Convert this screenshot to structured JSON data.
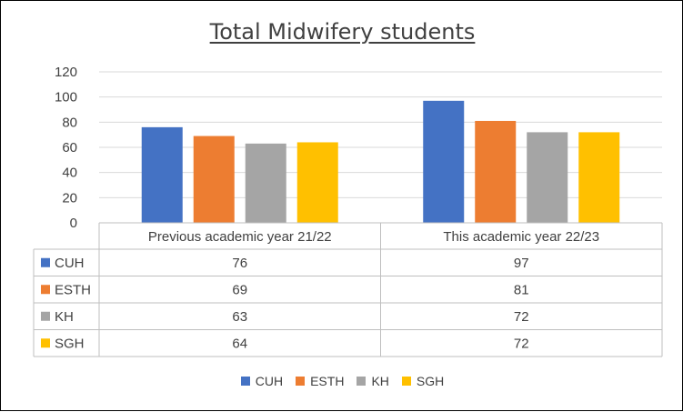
{
  "chart_data": {
    "type": "bar",
    "title": "Total Midwifery students",
    "categories": [
      "Previous academic year 21/22",
      "This academic year 22/23"
    ],
    "series": [
      {
        "name": "CUH",
        "color": "#4472C4",
        "values": [
          76,
          97
        ]
      },
      {
        "name": "ESTH",
        "color": "#ED7D31",
        "values": [
          69,
          81
        ]
      },
      {
        "name": "KH",
        "color": "#A5A5A5",
        "values": [
          63,
          72
        ]
      },
      {
        "name": "SGH",
        "color": "#FFC000",
        "values": [
          64,
          72
        ]
      }
    ],
    "ylim": [
      0,
      120
    ],
    "yticks": [
      0,
      20,
      40,
      60,
      80,
      100,
      120
    ],
    "grid": true,
    "data_table": true,
    "legend_position": "bottom"
  }
}
